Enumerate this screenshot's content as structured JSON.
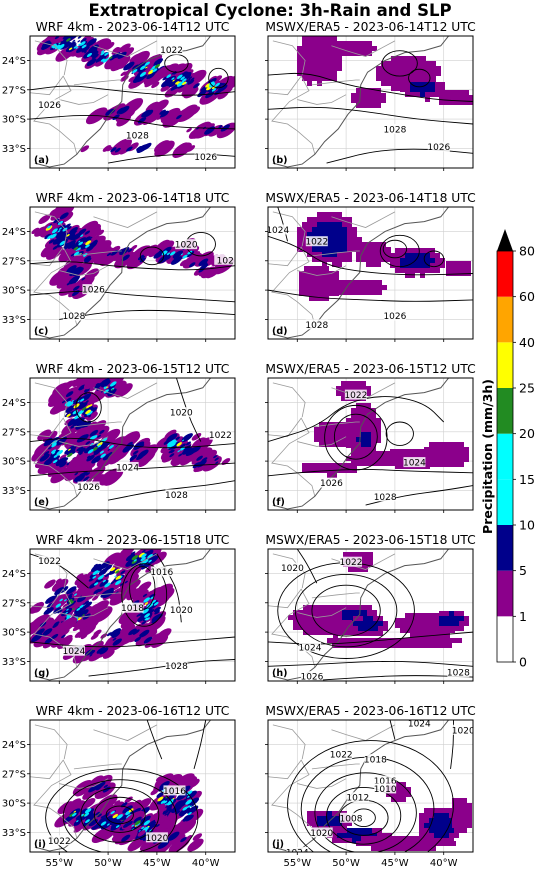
{
  "title": "Extratropical Cyclone: 3h-Rain and SLP",
  "rows": [
    {
      "left": {
        "title": "WRF 4km - 2023-06-14T12 UTC",
        "letter": "(a)",
        "isobars": [
          "1022",
          "1026",
          "1028",
          "1026"
        ]
      },
      "right": {
        "title": "MSWX/ERA5 - 2023-06-14T12 UTC",
        "letter": "(b)",
        "isobars": [
          "1028",
          "1026"
        ]
      }
    },
    {
      "left": {
        "title": "WRF 4km - 2023-06-14T18 UTC",
        "letter": "(c)",
        "isobars": [
          "1020",
          "1026",
          "1028",
          "102"
        ]
      },
      "right": {
        "title": "MSWX/ERA5 - 2023-06-14T18 UTC",
        "letter": "(d)",
        "isobars": [
          "1024",
          "1022",
          "1028",
          "1026"
        ]
      }
    },
    {
      "left": {
        "title": "WRF 4km - 2023-06-15T12 UTC",
        "letter": "(e)",
        "isobars": [
          "1020",
          "1022",
          "1024",
          "1026",
          "1028"
        ]
      },
      "right": {
        "title": "MSWX/ERA5 - 2023-06-15T12 UTC",
        "letter": "(f)",
        "isobars": [
          "1022",
          "1026",
          "1028",
          "1024"
        ]
      }
    },
    {
      "left": {
        "title": "WRF 4km - 2023-06-15T18 UTC",
        "letter": "(g)",
        "isobars": [
          "1022",
          "1016",
          "1018",
          "1020",
          "1024",
          "1028"
        ]
      },
      "right": {
        "title": "MSWX/ERA5 - 2023-06-15T18 UTC",
        "letter": "(h)",
        "isobars": [
          "1020",
          "1022",
          "1024",
          "1026",
          "1028"
        ]
      }
    },
    {
      "left": {
        "title": "WRF 4km - 2023-06-16T12 UTC",
        "letter": "(i)",
        "isobars": [
          "1016",
          "1022",
          "1020"
        ]
      },
      "right": {
        "title": "MSWX/ERA5 - 2023-06-16T12 UTC",
        "letter": "(j)",
        "isobars": [
          "1024",
          "1022",
          "1018",
          "1016",
          "1012",
          "1010",
          "1008",
          "1020",
          "1024",
          "1020"
        ]
      }
    }
  ],
  "y_ticks": [
    "24°S",
    "27°S",
    "30°S",
    "33°S"
  ],
  "x_ticks": [
    "55°W",
    "50°W",
    "45°W",
    "40°W"
  ],
  "colorbar": {
    "label": "Precipitation (mm/3h)",
    "levels": [
      "0",
      "1",
      "5",
      "10",
      "15",
      "20",
      "25",
      "40",
      "60",
      "80"
    ],
    "colors": [
      "#ffffff",
      "#8b008b",
      "#00008b",
      "#00ffff",
      "#00ffff",
      "#228b22",
      "#ffff00",
      "#ffa500",
      "#ff0000",
      "#ffc0cb"
    ],
    "extend_color": "#000000"
  },
  "legend_colors": {
    "rain_light": "#8b008b",
    "rain_mod": "#00008b",
    "rain_heavy": "#00e5ff",
    "rain_green": "#228b22",
    "rain_yellow": "#ffff00",
    "rain_orange": "#ffa500"
  }
}
